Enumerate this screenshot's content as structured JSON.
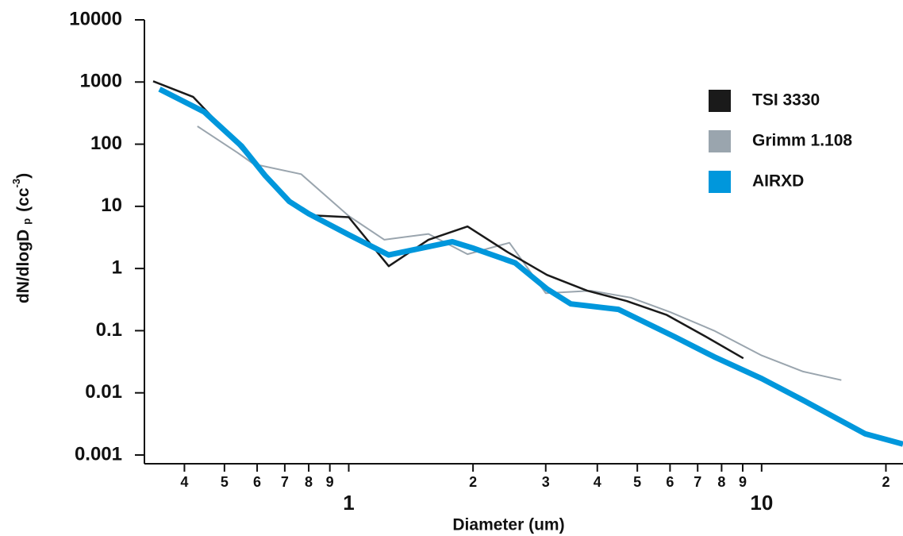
{
  "chart_data": {
    "type": "line",
    "xlabel": "Diameter (um)",
    "ylabel_parts": [
      "dN/dlogD",
      "p",
      "(cc",
      "-3",
      ")"
    ],
    "xscale": "log",
    "yscale": "log",
    "xlim": [
      0.32,
      22
    ],
    "ylim": [
      0.001,
      10000
    ],
    "xticks": [
      {
        "value": 0.4,
        "label": "4"
      },
      {
        "value": 0.5,
        "label": "5"
      },
      {
        "value": 0.6,
        "label": "6"
      },
      {
        "value": 0.7,
        "label": "7"
      },
      {
        "value": 0.8,
        "label": "8"
      },
      {
        "value": 0.9,
        "label": "9"
      },
      1,
      2,
      3,
      4,
      5,
      6,
      7,
      8,
      9,
      10,
      {
        "value": 20,
        "label": "2"
      }
    ],
    "yticks": [
      10000,
      1000,
      100,
      10,
      1,
      0.1,
      0.01,
      0.001
    ],
    "legend": "upper right",
    "series": [
      {
        "name": "TSI 3330",
        "color": "#1a1a1a",
        "x": [
          0.336,
          0.42,
          0.508,
          0.642,
          0.718,
          0.8,
          1.0,
          1.25,
          1.56,
          1.94,
          2.42,
          3.02,
          3.78,
          4.71,
          5.88,
          7.33,
          9.03
        ],
        "values": [
          1030,
          575,
          152,
          26,
          11.8,
          7.2,
          6.7,
          1.09,
          2.9,
          4.75,
          1.85,
          0.79,
          0.44,
          0.3,
          0.18,
          0.08,
          0.036
        ]
      },
      {
        "name": "Grimm 1.108",
        "color": "#9aa5ae",
        "x": [
          0.43,
          0.538,
          0.588,
          0.767,
          1.0,
          1.22,
          1.56,
          1.94,
          2.45,
          3.0,
          3.86,
          4.82,
          6.0,
          7.67,
          10,
          12.6,
          15.6
        ],
        "values": [
          194,
          73,
          48,
          33,
          7,
          2.9,
          3.6,
          1.7,
          2.6,
          0.4,
          0.44,
          0.34,
          0.2,
          0.1,
          0.04,
          0.022,
          0.016
        ]
      },
      {
        "name": "AIRXD",
        "color": "#0097dc",
        "x": [
          0.348,
          0.447,
          0.55,
          0.628,
          0.718,
          0.8,
          1.0,
          1.25,
          1.78,
          1.99,
          2.53,
          3.02,
          3.45,
          4.5,
          6.15,
          7.67,
          10,
          12.6,
          17.8,
          22
        ],
        "values": [
          770,
          330,
          93,
          31,
          12,
          7.6,
          3.5,
          1.65,
          2.7,
          2.15,
          1.23,
          0.47,
          0.27,
          0.22,
          0.08,
          0.038,
          0.017,
          0.0076,
          0.0022,
          0.0015
        ]
      }
    ]
  }
}
